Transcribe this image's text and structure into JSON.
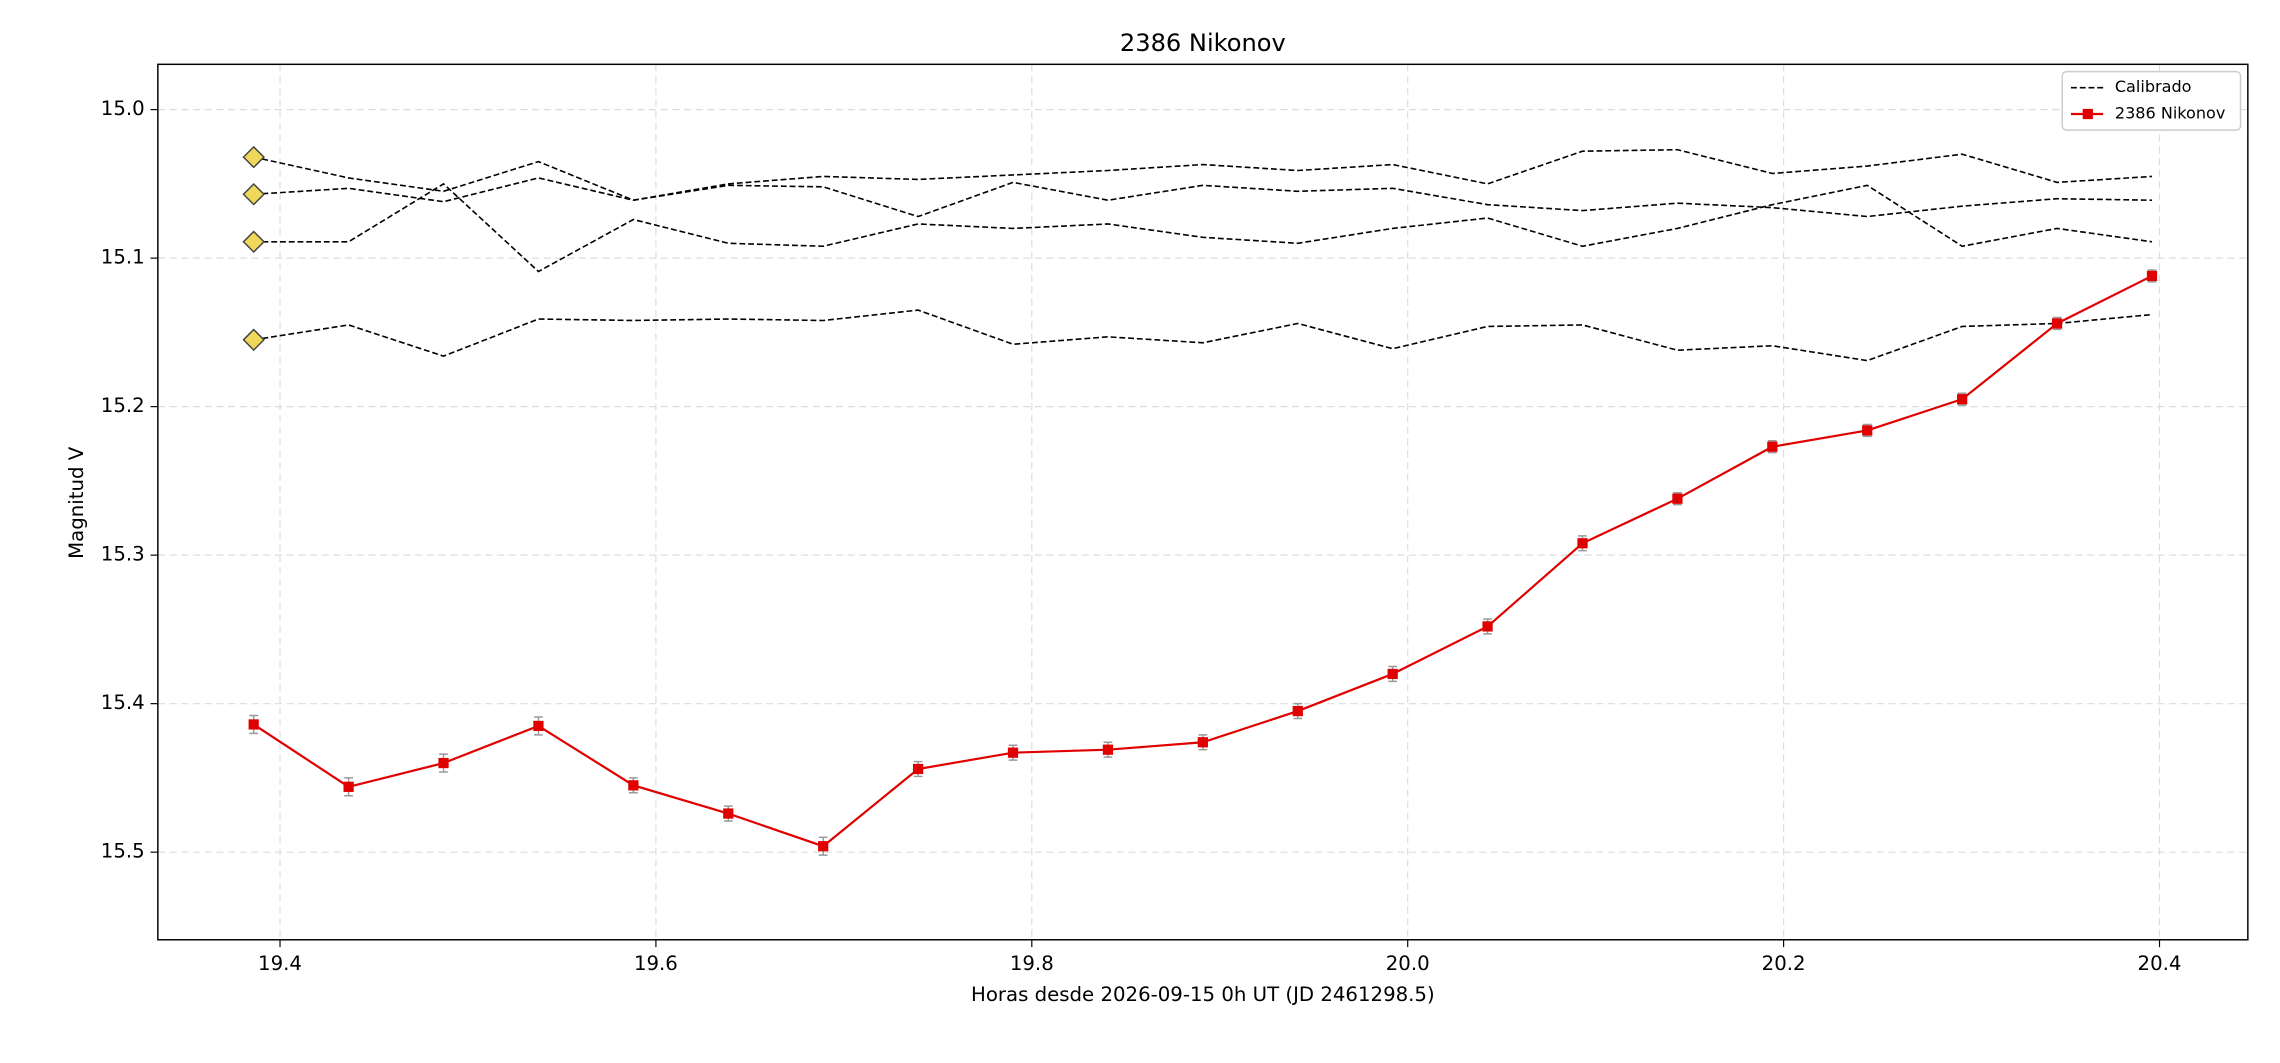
{
  "chart_data": {
    "type": "line",
    "title": "2386 Nikonov",
    "xlabel": "Horas desde 2026-09-15 0h UT (JD 2461298.5)",
    "ylabel": "Magnitud V",
    "x": [
      19.386,
      19.4365,
      19.487,
      19.5375,
      19.588,
      19.6385,
      19.689,
      19.7395,
      19.79,
      19.8405,
      19.891,
      19.9415,
      19.992,
      20.0425,
      20.093,
      20.1435,
      20.194,
      20.2445,
      20.295,
      20.3455,
      20.396
    ],
    "xlim": [
      19.335,
      20.447
    ],
    "xticks": [
      19.4,
      19.6,
      19.8,
      {
        "value": 20.0,
        "label": "20.0"
      },
      20.2,
      20.4
    ],
    "ylim": [
      15.559,
      14.9695
    ],
    "yticks": [
      {
        "value": 15.0,
        "label": "15.0"
      },
      15.1,
      15.2,
      15.3,
      15.4,
      15.5
    ],
    "grid": true,
    "legend": "upper right",
    "series": [
      {
        "name": "Calibrado",
        "color": "#000000",
        "style": "dashed",
        "marker_color": "#f0d85a",
        "lines": [
          [
            15.032,
            15.046,
            15.055,
            15.035,
            15.061,
            15.05,
            15.045,
            15.047,
            15.044,
            15.041,
            15.037,
            15.041,
            15.037,
            15.05,
            15.028,
            15.027,
            15.043,
            15.038,
            15.03,
            15.049,
            15.045
          ],
          [
            15.057,
            15.053,
            15.062,
            15.046,
            15.061,
            15.051,
            15.052,
            15.072,
            15.049,
            15.061,
            15.051,
            15.055,
            15.053,
            15.064,
            15.068,
            15.063,
            15.066,
            15.072,
            15.065,
            15.06,
            15.061
          ],
          [
            15.089,
            15.089,
            15.05,
            15.109,
            15.074,
            15.09,
            15.092,
            15.077,
            15.08,
            15.077,
            15.086,
            15.09,
            15.08,
            15.073,
            15.092,
            15.08,
            15.064,
            15.051,
            15.092,
            15.08,
            15.089
          ],
          [
            15.155,
            15.145,
            15.166,
            15.141,
            15.142,
            15.141,
            15.142,
            15.135,
            15.158,
            15.153,
            15.157,
            15.144,
            15.161,
            15.146,
            15.145,
            15.162,
            15.159,
            15.169,
            15.146,
            15.144,
            15.138
          ]
        ]
      },
      {
        "name": "2386 Nikonov",
        "color": "#e00000",
        "values": [
          15.414,
          15.456,
          15.44,
          15.415,
          15.455,
          15.474,
          15.496,
          15.444,
          15.433,
          15.431,
          15.426,
          15.405,
          15.38,
          15.348,
          15.292,
          15.262,
          15.227,
          15.216,
          15.195,
          15.144,
          15.112
        ],
        "errors": [
          0.006,
          0.006,
          0.006,
          0.006,
          0.005,
          0.005,
          0.006,
          0.005,
          0.005,
          0.005,
          0.005,
          0.005,
          0.005,
          0.005,
          0.005,
          0.004,
          0.004,
          0.004,
          0.004,
          0.004,
          0.004
        ]
      }
    ]
  }
}
